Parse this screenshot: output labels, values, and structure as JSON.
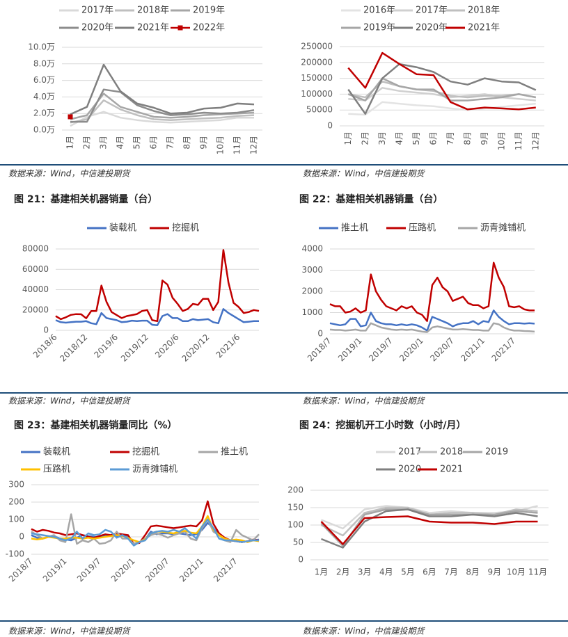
{
  "chart_data": [
    {
      "type": "line",
      "categories": [
        "1月",
        "2月",
        "3月",
        "4月",
        "5月",
        "6月",
        "7月",
        "8月",
        "9月",
        "10月",
        "11月",
        "12月"
      ],
      "ylim": [
        0,
        10
      ],
      "yticks": [
        {
          "value": 0,
          "label": "0.0万"
        },
        {
          "value": 2,
          "label": "2.0万"
        },
        {
          "value": 4,
          "label": "4.0万"
        },
        {
          "value": 6,
          "label": "6.0万"
        },
        {
          "value": 8,
          "label": "8.0万"
        },
        {
          "value": 10,
          "label": "10.0万"
        }
      ],
      "grid": true,
      "series": [
        {
          "name": "2017年",
          "color": "#d9d9d9",
          "values": [
            0.5,
            1.6,
            2.2,
            1.5,
            1.2,
            1.0,
            0.9,
            1.0,
            1.1,
            1.2,
            1.5,
            1.5
          ]
        },
        {
          "name": "2018年",
          "color": "#bfbfbf",
          "values": [
            0.9,
            1.3,
            3.6,
            2.5,
            1.8,
            1.3,
            1.2,
            1.3,
            1.4,
            1.5,
            1.7,
            1.8
          ]
        },
        {
          "name": "2019年",
          "color": "#a6a6a6",
          "values": [
            1.3,
            1.8,
            4.4,
            2.8,
            2.2,
            1.6,
            1.5,
            1.6,
            1.8,
            1.9,
            2.0,
            2.1
          ]
        },
        {
          "name": "2020年",
          "color": "#8c8c8c",
          "values": [
            1.0,
            1.0,
            4.9,
            4.6,
            3.0,
            2.3,
            1.8,
            1.9,
            2.1,
            2.0,
            2.1,
            2.4
          ]
        },
        {
          "name": "2021年",
          "color": "#7f7f7f",
          "values": [
            1.9,
            2.8,
            7.9,
            4.7,
            3.2,
            2.7,
            2.0,
            2.1,
            2.6,
            2.7,
            3.2,
            3.1
          ]
        },
        {
          "name": "2022年",
          "color": "#c00000",
          "marker": "square",
          "values": [
            1.6,
            null,
            null,
            null,
            null,
            null,
            null,
            null,
            null,
            null,
            null,
            null
          ]
        }
      ],
      "source": "数据来源：Wind，中信建投期货"
    },
    {
      "type": "line",
      "categories": [
        "1月",
        "2月",
        "3月",
        "4月",
        "5月",
        "6月",
        "7月",
        "8月",
        "9月",
        "10月",
        "11月",
        "12月"
      ],
      "ylim": [
        0,
        250000
      ],
      "yticks": [
        0,
        50000,
        100000,
        150000,
        200000,
        250000
      ],
      "grid": true,
      "series": [
        {
          "name": "2016年",
          "color": "#e3e3e3",
          "values": [
            38000,
            35000,
            75000,
            70000,
            65000,
            62000,
            55000,
            50000,
            55000,
            60000,
            65000,
            70000
          ]
        },
        {
          "name": "2017年",
          "color": "#d0d0d0",
          "values": [
            85000,
            80000,
            120000,
            110000,
            105000,
            100000,
            90000,
            95000,
            100000,
            90000,
            85000,
            80000
          ]
        },
        {
          "name": "2018年",
          "color": "#bfbfbf",
          "values": [
            100000,
            90000,
            140000,
            125000,
            115000,
            110000,
            95000,
            90000,
            95000,
            95000,
            100000,
            90000
          ]
        },
        {
          "name": "2019年",
          "color": "#a6a6a6",
          "values": [
            100000,
            80000,
            150000,
            125000,
            115000,
            115000,
            80000,
            80000,
            85000,
            90000,
            100000,
            90000
          ]
        },
        {
          "name": "2020年",
          "color": "#7f7f7f",
          "values": [
            115000,
            38000,
            150000,
            195000,
            185000,
            170000,
            140000,
            130000,
            150000,
            140000,
            137000,
            113000
          ]
        },
        {
          "name": "2021年",
          "color": "#c00000",
          "values": [
            183000,
            120000,
            230000,
            195000,
            163000,
            160000,
            75000,
            52000,
            58000,
            55000,
            52000,
            58000
          ]
        }
      ],
      "source": "数据来源：Wind，中信建投期货"
    },
    {
      "type": "line",
      "caption": "图 21：基建相关机器销量（台）",
      "categories": [
        "2018/6",
        null,
        null,
        null,
        null,
        null,
        "2018/12",
        null,
        null,
        null,
        null,
        null,
        "2019/6",
        null,
        null,
        null,
        null,
        null,
        "2019/12",
        null,
        null,
        null,
        null,
        null,
        "2020/6",
        null,
        null,
        null,
        null,
        null,
        "2020/12",
        null,
        null,
        null,
        null,
        null,
        "2021/6",
        null,
        null,
        null,
        null
      ],
      "ylim": [
        0,
        80000
      ],
      "yticks": [
        0,
        20000,
        40000,
        60000,
        80000
      ],
      "grid": true,
      "series": [
        {
          "name": "装载机",
          "color": "#4472c4",
          "values": [
            10000,
            8000,
            7500,
            8000,
            8500,
            8500,
            9000,
            7000,
            6000,
            17000,
            12000,
            11000,
            10000,
            8000,
            8500,
            9500,
            9000,
            9500,
            9500,
            5500,
            5000,
            14000,
            16000,
            12000,
            12000,
            9000,
            9000,
            11000,
            10000,
            10500,
            11000,
            8000,
            7000,
            21000,
            17000,
            14000,
            11000,
            8000,
            8500,
            9000,
            9000
          ]
        },
        {
          "name": "挖掘机",
          "color": "#c00000",
          "values": [
            14000,
            11000,
            12800,
            15200,
            15900,
            15800,
            11800,
            19000,
            19000,
            44000,
            28000,
            18000,
            15000,
            12000,
            14000,
            15000,
            16000,
            19000,
            20000,
            10000,
            9000,
            49000,
            45000,
            32000,
            26000,
            19000,
            21000,
            26000,
            25000,
            31000,
            31000,
            20000,
            28000,
            79000,
            47000,
            27000,
            23000,
            17000,
            18000,
            20000,
            19000
          ]
        }
      ],
      "source": "数据来源：Wind，中信建投期货"
    },
    {
      "type": "line",
      "caption": "图 22：基建相关机器销量（台）",
      "categories": [
        "2018/7",
        null,
        null,
        null,
        null,
        null,
        "2019/1",
        null,
        null,
        null,
        null,
        null,
        "2019/7",
        null,
        null,
        null,
        null,
        null,
        "2020/1",
        null,
        null,
        null,
        null,
        null,
        "2020/7",
        null,
        null,
        null,
        null,
        null,
        "2021/1",
        null,
        null,
        null,
        null,
        null,
        "2021/7",
        null,
        null,
        null,
        null
      ],
      "ylim": [
        0,
        4000
      ],
      "yticks": [
        0,
        1000,
        2000,
        3000,
        4000
      ],
      "grid": true,
      "series": [
        {
          "name": "推土机",
          "color": "#4472c4",
          "values": [
            500,
            450,
            400,
            450,
            700,
            700,
            350,
            400,
            1000,
            600,
            500,
            450,
            450,
            400,
            450,
            400,
            450,
            400,
            300,
            150,
            800,
            700,
            600,
            500,
            350,
            450,
            500,
            500,
            600,
            450,
            600,
            550,
            1100,
            800,
            600,
            450,
            500,
            500,
            480,
            500,
            480
          ]
        },
        {
          "name": "压路机",
          "color": "#c00000",
          "values": [
            1400,
            1300,
            1300,
            1000,
            1050,
            1200,
            1000,
            1100,
            2800,
            2000,
            1600,
            1300,
            1200,
            1100,
            1300,
            1200,
            1300,
            1000,
            900,
            600,
            2300,
            2650,
            2200,
            2000,
            1550,
            1650,
            1750,
            1450,
            1350,
            1350,
            1200,
            1300,
            3350,
            2650,
            2200,
            1300,
            1250,
            1300,
            1150,
            1100,
            1100
          ]
        },
        {
          "name": "沥青摊铺机",
          "color": "#a6a6a6",
          "values": [
            200,
            180,
            180,
            150,
            170,
            200,
            150,
            150,
            500,
            400,
            300,
            250,
            200,
            180,
            200,
            180,
            200,
            150,
            100,
            80,
            300,
            350,
            300,
            250,
            200,
            200,
            220,
            200,
            180,
            180,
            150,
            150,
            500,
            450,
            300,
            200,
            150,
            150,
            130,
            120,
            100
          ]
        }
      ],
      "source": "数据来源：Wind，中信建投期货"
    },
    {
      "type": "line",
      "caption": "图 23：基建相关机器销量同比（%）",
      "categories": [
        "2018/7",
        null,
        null,
        null,
        null,
        null,
        "2019/1",
        null,
        null,
        null,
        null,
        null,
        "2019/7",
        null,
        null,
        null,
        null,
        null,
        "2020/1",
        null,
        null,
        null,
        null,
        null,
        "2020/7",
        null,
        null,
        null,
        null,
        null,
        "2021/1",
        null,
        null,
        null,
        null,
        null,
        "2021/7",
        null,
        null,
        null,
        null
      ],
      "ylim": [
        -100,
        300
      ],
      "yticks": [
        -100,
        0,
        100,
        200,
        300
      ],
      "grid": true,
      "series": [
        {
          "name": "装载机",
          "color": "#4472c4",
          "values": [
            10,
            -5,
            -10,
            0,
            5,
            -10,
            -15,
            -20,
            -5,
            10,
            5,
            0,
            -5,
            10,
            10,
            5,
            10,
            0,
            -40,
            -30,
            -15,
            30,
            15,
            20,
            20,
            15,
            20,
            15,
            10,
            15,
            40,
            80,
            50,
            10,
            -10,
            -20,
            -25,
            -30,
            -25,
            -20,
            -15
          ]
        },
        {
          "name": "挖掘机",
          "color": "#c00000",
          "values": [
            45,
            30,
            40,
            35,
            25,
            20,
            10,
            15,
            20,
            10,
            0,
            -5,
            5,
            15,
            10,
            20,
            15,
            10,
            -40,
            -35,
            10,
            60,
            65,
            60,
            55,
            50,
            55,
            60,
            65,
            60,
            95,
            205,
            75,
            20,
            -5,
            -20,
            -25,
            -30,
            -25,
            -15,
            -20
          ]
        },
        {
          "name": "推土机",
          "color": "#a6a6a6",
          "values": [
            30,
            10,
            -10,
            0,
            10,
            -20,
            -30,
            130,
            -40,
            -20,
            -30,
            -10,
            -40,
            -35,
            -20,
            30,
            -10,
            -10,
            -40,
            -30,
            -10,
            10,
            20,
            10,
            -5,
            10,
            20,
            30,
            -10,
            -20,
            50,
            100,
            30,
            10,
            -20,
            -30,
            40,
            10,
            -5,
            -20,
            15
          ]
        },
        {
          "name": "压路机",
          "color": "#ffc000",
          "values": [
            -10,
            -15,
            -10,
            0,
            -5,
            -10,
            -10,
            -5,
            -5,
            -10,
            -5,
            -10,
            -5,
            0,
            5,
            10,
            5,
            -5,
            -20,
            -30,
            -15,
            20,
            30,
            30,
            25,
            20,
            30,
            35,
            25,
            20,
            60,
            120,
            40,
            10,
            -10,
            -20,
            -15,
            -20,
            -30,
            -20,
            -25
          ]
        },
        {
          "name": "沥青摊铺机",
          "color": "#5b9bd5",
          "values": [
            20,
            15,
            10,
            5,
            0,
            -10,
            -20,
            -10,
            30,
            -10,
            20,
            10,
            15,
            40,
            30,
            -5,
            10,
            -10,
            -50,
            -30,
            -20,
            20,
            30,
            35,
            30,
            40,
            30,
            50,
            20,
            -10,
            60,
            100,
            50,
            -10,
            -20,
            -20,
            -25,
            -30,
            -25,
            -20,
            -20
          ]
        }
      ],
      "source": "数据来源：Wind，中信建投期货"
    },
    {
      "type": "line",
      "caption": "图 24：挖掘机开工小时数（小时/月）",
      "categories": [
        "1月",
        "2月",
        "3月",
        "4月",
        "5月",
        "6月",
        "7月",
        "8月",
        "9月",
        "10月",
        "11月"
      ],
      "ylim": [
        0,
        200
      ],
      "yticks": [
        0,
        50,
        100,
        150,
        200
      ],
      "grid": true,
      "series": [
        {
          "name": "2017",
          "color": "#d9d9d9",
          "values": [
            115,
            90,
            145,
            155,
            150,
            135,
            140,
            135,
            135,
            140,
            155
          ]
        },
        {
          "name": "2018",
          "color": "#bfbfbf",
          "values": [
            100,
            70,
            135,
            150,
            150,
            130,
            135,
            135,
            130,
            145,
            140
          ]
        },
        {
          "name": "2019",
          "color": "#a6a6a6",
          "values": [
            105,
            40,
            130,
            145,
            145,
            130,
            130,
            130,
            130,
            140,
            135
          ]
        },
        {
          "name": "2020",
          "color": "#7f7f7f",
          "values": [
            60,
            35,
            110,
            140,
            145,
            125,
            125,
            130,
            125,
            135,
            125
          ]
        },
        {
          "name": "2021",
          "color": "#c00000",
          "values": [
            110,
            45,
            120,
            123,
            125,
            110,
            107,
            107,
            103,
            110,
            110
          ]
        }
      ],
      "source": "数据来源：Wind，中信建投期货"
    }
  ]
}
